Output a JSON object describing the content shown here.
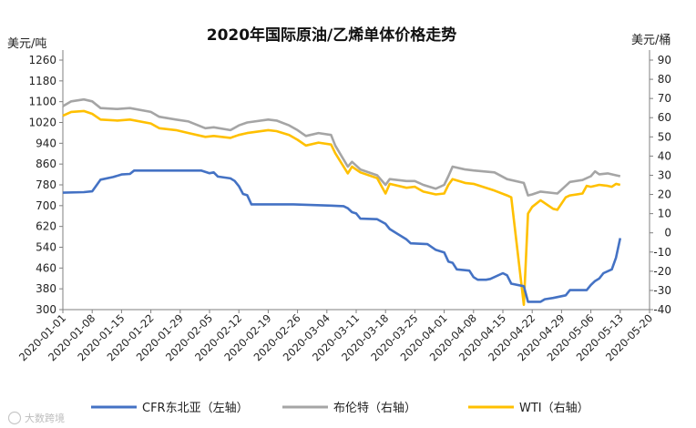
{
  "chart_data": {
    "type": "line",
    "title": "2020年国际原油/乙烯单体价格走势",
    "y_left_label": "美元/吨",
    "y_right_label": "美元/桶",
    "y_left_lim": [
      300,
      1300
    ],
    "y_left_ticks": [
      300,
      380,
      460,
      540,
      620,
      700,
      780,
      860,
      940,
      1020,
      1100,
      1180,
      1260
    ],
    "y_right_lim": [
      -40,
      90
    ],
    "y_right_ticks": [
      -40,
      -30,
      -20,
      -10,
      0,
      10,
      20,
      30,
      40,
      50,
      60,
      70,
      80,
      90
    ],
    "x_ticks": [
      "2020-01-01",
      "2020-01-08",
      "2020-01-15",
      "2020-01-22",
      "2020-01-29",
      "2020-02-05",
      "2020-02-12",
      "2020-02-19",
      "2020-02-26",
      "2020-03-04",
      "2020-03-11",
      "2020-03-18",
      "2020-03-25",
      "2020-04-01",
      "2020-04-08",
      "2020-04-15",
      "2020-04-22",
      "2020-04-29",
      "2020-05-06",
      "2020-05-13",
      "2020-05-20"
    ],
    "x_range": [
      "2020-01-01",
      "2020-05-20"
    ],
    "grid": false,
    "legend_position": "bottom",
    "series": [
      {
        "name": "CFR东北亚（左轴）",
        "axis": "left",
        "color": "#4472C4",
        "points": [
          [
            "2020-01-01",
            750
          ],
          [
            "2020-01-06",
            752
          ],
          [
            "2020-01-08",
            755
          ],
          [
            "2020-01-10",
            800
          ],
          [
            "2020-01-13",
            810
          ],
          [
            "2020-01-15",
            820
          ],
          [
            "2020-01-17",
            822
          ],
          [
            "2020-01-18",
            835
          ],
          [
            "2020-01-28",
            835
          ],
          [
            "2020-02-03",
            835
          ],
          [
            "2020-02-05",
            825
          ],
          [
            "2020-02-06",
            828
          ],
          [
            "2020-02-07",
            812
          ],
          [
            "2020-02-10",
            805
          ],
          [
            "2020-02-11",
            795
          ],
          [
            "2020-02-12",
            775
          ],
          [
            "2020-02-13",
            745
          ],
          [
            "2020-02-14",
            740
          ],
          [
            "2020-02-15",
            705
          ],
          [
            "2020-02-25",
            705
          ],
          [
            "2020-03-05",
            700
          ],
          [
            "2020-03-08",
            698
          ],
          [
            "2020-03-09",
            690
          ],
          [
            "2020-03-10",
            675
          ],
          [
            "2020-03-11",
            670
          ],
          [
            "2020-03-12",
            650
          ],
          [
            "2020-03-16",
            648
          ],
          [
            "2020-03-18",
            630
          ],
          [
            "2020-03-19",
            610
          ],
          [
            "2020-03-20",
            600
          ],
          [
            "2020-03-23",
            570
          ],
          [
            "2020-03-24",
            555
          ],
          [
            "2020-03-28",
            552
          ],
          [
            "2020-03-30",
            530
          ],
          [
            "2020-04-01",
            520
          ],
          [
            "2020-04-02",
            485
          ],
          [
            "2020-04-03",
            480
          ],
          [
            "2020-04-04",
            455
          ],
          [
            "2020-04-07",
            450
          ],
          [
            "2020-04-08",
            425
          ],
          [
            "2020-04-09",
            415
          ],
          [
            "2020-04-11",
            415
          ],
          [
            "2020-04-12",
            418
          ],
          [
            "2020-04-15",
            440
          ],
          [
            "2020-04-16",
            432
          ],
          [
            "2020-04-17",
            400
          ],
          [
            "2020-04-20",
            390
          ],
          [
            "2020-04-21",
            330
          ],
          [
            "2020-04-24",
            330
          ],
          [
            "2020-04-25",
            340
          ],
          [
            "2020-04-27",
            345
          ],
          [
            "2020-04-30",
            355
          ],
          [
            "2020-05-01",
            375
          ],
          [
            "2020-05-05",
            375
          ],
          [
            "2020-05-06",
            395
          ],
          [
            "2020-05-07",
            410
          ],
          [
            "2020-05-08",
            420
          ],
          [
            "2020-05-09",
            440
          ],
          [
            "2020-05-11",
            455
          ],
          [
            "2020-05-12",
            500
          ],
          [
            "2020-05-13",
            575
          ]
        ]
      },
      {
        "name": "布伦特（右轴）",
        "axis": "right",
        "color": "#A5A5A5",
        "points": [
          [
            "2020-01-01",
            66.0
          ],
          [
            "2020-01-03",
            68.5
          ],
          [
            "2020-01-06",
            69.5
          ],
          [
            "2020-01-08",
            68.5
          ],
          [
            "2020-01-10",
            65.0
          ],
          [
            "2020-01-14",
            64.5
          ],
          [
            "2020-01-17",
            65.0
          ],
          [
            "2020-01-22",
            63.0
          ],
          [
            "2020-01-24",
            60.5
          ],
          [
            "2020-01-28",
            59.0
          ],
          [
            "2020-01-31",
            58.0
          ],
          [
            "2020-02-04",
            54.5
          ],
          [
            "2020-02-06",
            55.0
          ],
          [
            "2020-02-10",
            53.5
          ],
          [
            "2020-02-12",
            56.0
          ],
          [
            "2020-02-14",
            57.5
          ],
          [
            "2020-02-19",
            59.0
          ],
          [
            "2020-02-21",
            58.5
          ],
          [
            "2020-02-24",
            56.0
          ],
          [
            "2020-02-26",
            53.5
          ],
          [
            "2020-02-28",
            50.5
          ],
          [
            "2020-03-02",
            52.0
          ],
          [
            "2020-03-05",
            51.0
          ],
          [
            "2020-03-06",
            45.5
          ],
          [
            "2020-03-09",
            34.5
          ],
          [
            "2020-03-10",
            37.0
          ],
          [
            "2020-03-12",
            33.0
          ],
          [
            "2020-03-16",
            30.0
          ],
          [
            "2020-03-18",
            25.0
          ],
          [
            "2020-03-19",
            28.0
          ],
          [
            "2020-03-23",
            27.0
          ],
          [
            "2020-03-25",
            27.0
          ],
          [
            "2020-03-27",
            25.0
          ],
          [
            "2020-03-30",
            23.0
          ],
          [
            "2020-04-01",
            25.0
          ],
          [
            "2020-04-02",
            29.5
          ],
          [
            "2020-04-03",
            34.5
          ],
          [
            "2020-04-06",
            33.0
          ],
          [
            "2020-04-08",
            32.5
          ],
          [
            "2020-04-13",
            31.5
          ],
          [
            "2020-04-16",
            28.0
          ],
          [
            "2020-04-20",
            26.0
          ],
          [
            "2020-04-21",
            19.5
          ],
          [
            "2020-04-22",
            20.0
          ],
          [
            "2020-04-24",
            21.5
          ],
          [
            "2020-04-28",
            20.5
          ],
          [
            "2020-04-29",
            22.5
          ],
          [
            "2020-05-01",
            26.5
          ],
          [
            "2020-05-04",
            27.5
          ],
          [
            "2020-05-06",
            29.5
          ],
          [
            "2020-05-07",
            32.0
          ],
          [
            "2020-05-08",
            30.5
          ],
          [
            "2020-05-10",
            31.0
          ],
          [
            "2020-05-12",
            30.0
          ],
          [
            "2020-05-13",
            29.5
          ]
        ]
      },
      {
        "name": "WTI（右轴）",
        "axis": "right",
        "color": "#FFC000",
        "points": [
          [
            "2020-01-01",
            61.0
          ],
          [
            "2020-01-03",
            63.0
          ],
          [
            "2020-01-06",
            63.5
          ],
          [
            "2020-01-08",
            62.0
          ],
          [
            "2020-01-10",
            59.0
          ],
          [
            "2020-01-14",
            58.5
          ],
          [
            "2020-01-17",
            59.0
          ],
          [
            "2020-01-22",
            57.0
          ],
          [
            "2020-01-24",
            54.5
          ],
          [
            "2020-01-28",
            53.5
          ],
          [
            "2020-01-31",
            52.0
          ],
          [
            "2020-02-04",
            50.0
          ],
          [
            "2020-02-06",
            50.5
          ],
          [
            "2020-02-10",
            49.5
          ],
          [
            "2020-02-12",
            51.0
          ],
          [
            "2020-02-14",
            52.0
          ],
          [
            "2020-02-19",
            53.5
          ],
          [
            "2020-02-21",
            53.0
          ],
          [
            "2020-02-24",
            51.0
          ],
          [
            "2020-02-26",
            48.5
          ],
          [
            "2020-02-28",
            45.5
          ],
          [
            "2020-03-02",
            47.0
          ],
          [
            "2020-03-05",
            46.0
          ],
          [
            "2020-03-06",
            41.5
          ],
          [
            "2020-03-09",
            31.0
          ],
          [
            "2020-03-10",
            34.5
          ],
          [
            "2020-03-12",
            31.5
          ],
          [
            "2020-03-16",
            28.5
          ],
          [
            "2020-03-18",
            20.5
          ],
          [
            "2020-03-19",
            25.5
          ],
          [
            "2020-03-23",
            23.5
          ],
          [
            "2020-03-25",
            24.0
          ],
          [
            "2020-03-27",
            21.5
          ],
          [
            "2020-03-30",
            20.0
          ],
          [
            "2020-04-01",
            20.5
          ],
          [
            "2020-04-02",
            25.0
          ],
          [
            "2020-04-03",
            28.0
          ],
          [
            "2020-04-06",
            26.0
          ],
          [
            "2020-04-08",
            25.5
          ],
          [
            "2020-04-13",
            22.0
          ],
          [
            "2020-04-16",
            19.5
          ],
          [
            "2020-04-17",
            18.5
          ],
          [
            "2020-04-20",
            -37.5
          ],
          [
            "2020-04-21",
            10.0
          ],
          [
            "2020-04-22",
            13.5
          ],
          [
            "2020-04-24",
            17.0
          ],
          [
            "2020-04-27",
            12.5
          ],
          [
            "2020-04-28",
            12.0
          ],
          [
            "2020-04-30",
            18.5
          ],
          [
            "2020-05-01",
            19.5
          ],
          [
            "2020-05-04",
            20.5
          ],
          [
            "2020-05-05",
            24.5
          ],
          [
            "2020-05-06",
            24.0
          ],
          [
            "2020-05-08",
            25.0
          ],
          [
            "2020-05-10",
            24.5
          ],
          [
            "2020-05-11",
            24.0
          ],
          [
            "2020-05-12",
            25.5
          ],
          [
            "2020-05-13",
            25.0
          ]
        ]
      }
    ]
  },
  "watermark": "大数跨境"
}
